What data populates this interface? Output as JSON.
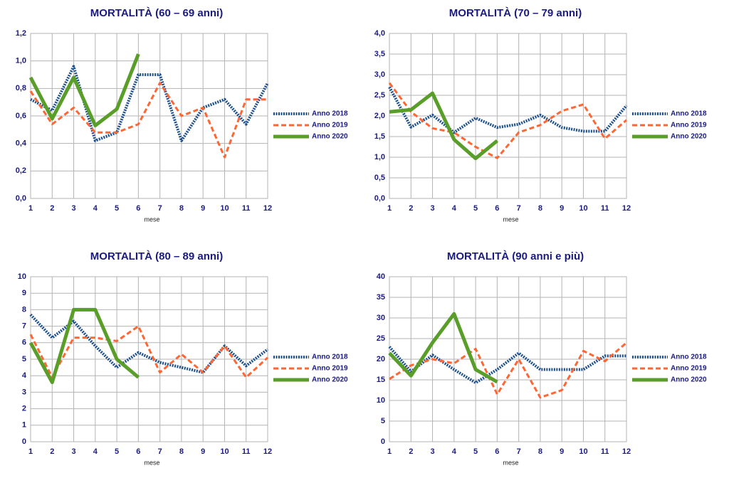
{
  "chart_data": [
    {
      "type": "line",
      "title": "MORTALITÀ (60 – 69 anni)",
      "x_label": "mese",
      "x": [
        1,
        2,
        3,
        4,
        5,
        6,
        7,
        8,
        9,
        10,
        11,
        12
      ],
      "xlim": [
        1,
        12
      ],
      "xticks": [
        1,
        2,
        3,
        4,
        5,
        6,
        7,
        8,
        9,
        10,
        11,
        12
      ],
      "ylim": [
        0,
        1.2
      ],
      "yticks": [
        {
          "value": 0,
          "label": "0,0"
        },
        {
          "value": 0.2,
          "label": "0,2"
        },
        {
          "value": 0.4,
          "label": "0,4"
        },
        {
          "value": 0.6,
          "label": "0,6"
        },
        {
          "value": 0.8,
          "label": "0,8"
        },
        {
          "value": 1.0,
          "label": "1,0"
        },
        {
          "value": 1.2,
          "label": "1,2"
        }
      ],
      "grid": true,
      "legend": "right",
      "series": [
        {
          "name": "Anno 2018",
          "color": "#1c4f8c",
          "values": [
            0.72,
            0.64,
            0.96,
            0.42,
            0.48,
            0.9,
            0.9,
            0.42,
            0.66,
            0.72,
            0.54,
            0.84
          ]
        },
        {
          "name": "Anno 2019",
          "color": "#ff6633",
          "values": [
            0.78,
            0.54,
            0.66,
            0.48,
            0.48,
            0.54,
            0.84,
            0.6,
            0.66,
            0.3,
            0.72,
            0.72
          ]
        },
        {
          "name": "Anno 2020",
          "color": "#5a9e2a",
          "values": [
            0.88,
            0.58,
            0.88,
            0.53,
            0.65,
            1.05,
            null,
            null,
            null,
            null,
            null,
            null
          ]
        }
      ]
    },
    {
      "type": "line",
      "title": "MORTALITÀ (70 – 79 anni)",
      "x_label": "mese",
      "x": [
        1,
        2,
        3,
        4,
        5,
        6,
        7,
        8,
        9,
        10,
        11,
        12
      ],
      "xlim": [
        1,
        12
      ],
      "xticks": [
        1,
        2,
        3,
        4,
        5,
        6,
        7,
        8,
        9,
        10,
        11,
        12
      ],
      "ylim": [
        0,
        4
      ],
      "yticks": [
        {
          "value": 0,
          "label": "0,0"
        },
        {
          "value": 0.5,
          "label": "0,5"
        },
        {
          "value": 1,
          "label": "1,0"
        },
        {
          "value": 1.5,
          "label": "1,5"
        },
        {
          "value": 2,
          "label": "2,0"
        },
        {
          "value": 2.5,
          "label": "2,5"
        },
        {
          "value": 3,
          "label": "3,0"
        },
        {
          "value": 3.5,
          "label": "3,5"
        },
        {
          "value": 4,
          "label": "4,0"
        }
      ],
      "grid": true,
      "legend": "right",
      "series": [
        {
          "name": "Anno 2018",
          "color": "#1c4f8c",
          "values": [
            2.7,
            1.73,
            2.02,
            1.6,
            1.95,
            1.72,
            1.8,
            2.02,
            1.72,
            1.63,
            1.63,
            2.25
          ]
        },
        {
          "name": "Anno 2019",
          "color": "#ff6633",
          "values": [
            2.8,
            2.1,
            1.7,
            1.6,
            1.25,
            0.98,
            1.6,
            1.78,
            2.12,
            2.28,
            1.45,
            1.9
          ]
        },
        {
          "name": "Anno 2020",
          "color": "#5a9e2a",
          "values": [
            2.1,
            2.15,
            2.55,
            1.43,
            0.97,
            1.4,
            null,
            null,
            null,
            null,
            null,
            null
          ]
        }
      ]
    },
    {
      "type": "line",
      "title": "MORTALITÀ (80 – 89 anni)",
      "x_label": "mese",
      "x": [
        1,
        2,
        3,
        4,
        5,
        6,
        7,
        8,
        9,
        10,
        11,
        12
      ],
      "xlim": [
        1,
        12
      ],
      "xticks": [
        1,
        2,
        3,
        4,
        5,
        6,
        7,
        8,
        9,
        10,
        11,
        12
      ],
      "ylim": [
        0,
        10
      ],
      "yticks": [
        0,
        1,
        2,
        3,
        4,
        5,
        6,
        7,
        8,
        9,
        10
      ],
      "grid": true,
      "legend": "right",
      "series": [
        {
          "name": "Anno 2018",
          "color": "#1c4f8c",
          "values": [
            7.7,
            6.3,
            7.3,
            5.8,
            4.5,
            5.4,
            4.8,
            4.5,
            4.2,
            5.8,
            4.6,
            5.6
          ]
        },
        {
          "name": "Anno 2019",
          "color": "#ff6633",
          "values": [
            6.5,
            3.9,
            6.3,
            6.3,
            6.1,
            7.0,
            4.2,
            5.3,
            4.2,
            5.8,
            3.9,
            5.1
          ]
        },
        {
          "name": "Anno 2020",
          "color": "#5a9e2a",
          "values": [
            6.0,
            3.6,
            8.0,
            8.0,
            5.0,
            3.9,
            null,
            null,
            null,
            null,
            null,
            null
          ]
        }
      ]
    },
    {
      "type": "line",
      "title": "MORTALITÀ (90 anni e più)",
      "x_label": "mese",
      "x": [
        1,
        2,
        3,
        4,
        5,
        6,
        7,
        8,
        9,
        10,
        11,
        12
      ],
      "xlim": [
        1,
        12
      ],
      "xticks": [
        1,
        2,
        3,
        4,
        5,
        6,
        7,
        8,
        9,
        10,
        11,
        12
      ],
      "ylim": [
        0,
        40
      ],
      "yticks": [
        0,
        5,
        10,
        15,
        20,
        25,
        30,
        35,
        40
      ],
      "grid": true,
      "legend": "right",
      "series": [
        {
          "name": "Anno 2018",
          "color": "#1c4f8c",
          "values": [
            23,
            17,
            21,
            17.5,
            14.3,
            17.5,
            21.5,
            17.5,
            17.5,
            17.5,
            20.8,
            20.8
          ]
        },
        {
          "name": "Anno 2019",
          "color": "#ff6633",
          "values": [
            15.2,
            18.5,
            20,
            19,
            22.5,
            11.5,
            20,
            10.7,
            12.5,
            22,
            19.5,
            24
          ]
        },
        {
          "name": "Anno 2020",
          "color": "#5a9e2a",
          "values": [
            21.5,
            16,
            24,
            31,
            17.5,
            14.5,
            null,
            null,
            null,
            null,
            null,
            null
          ]
        }
      ]
    }
  ]
}
